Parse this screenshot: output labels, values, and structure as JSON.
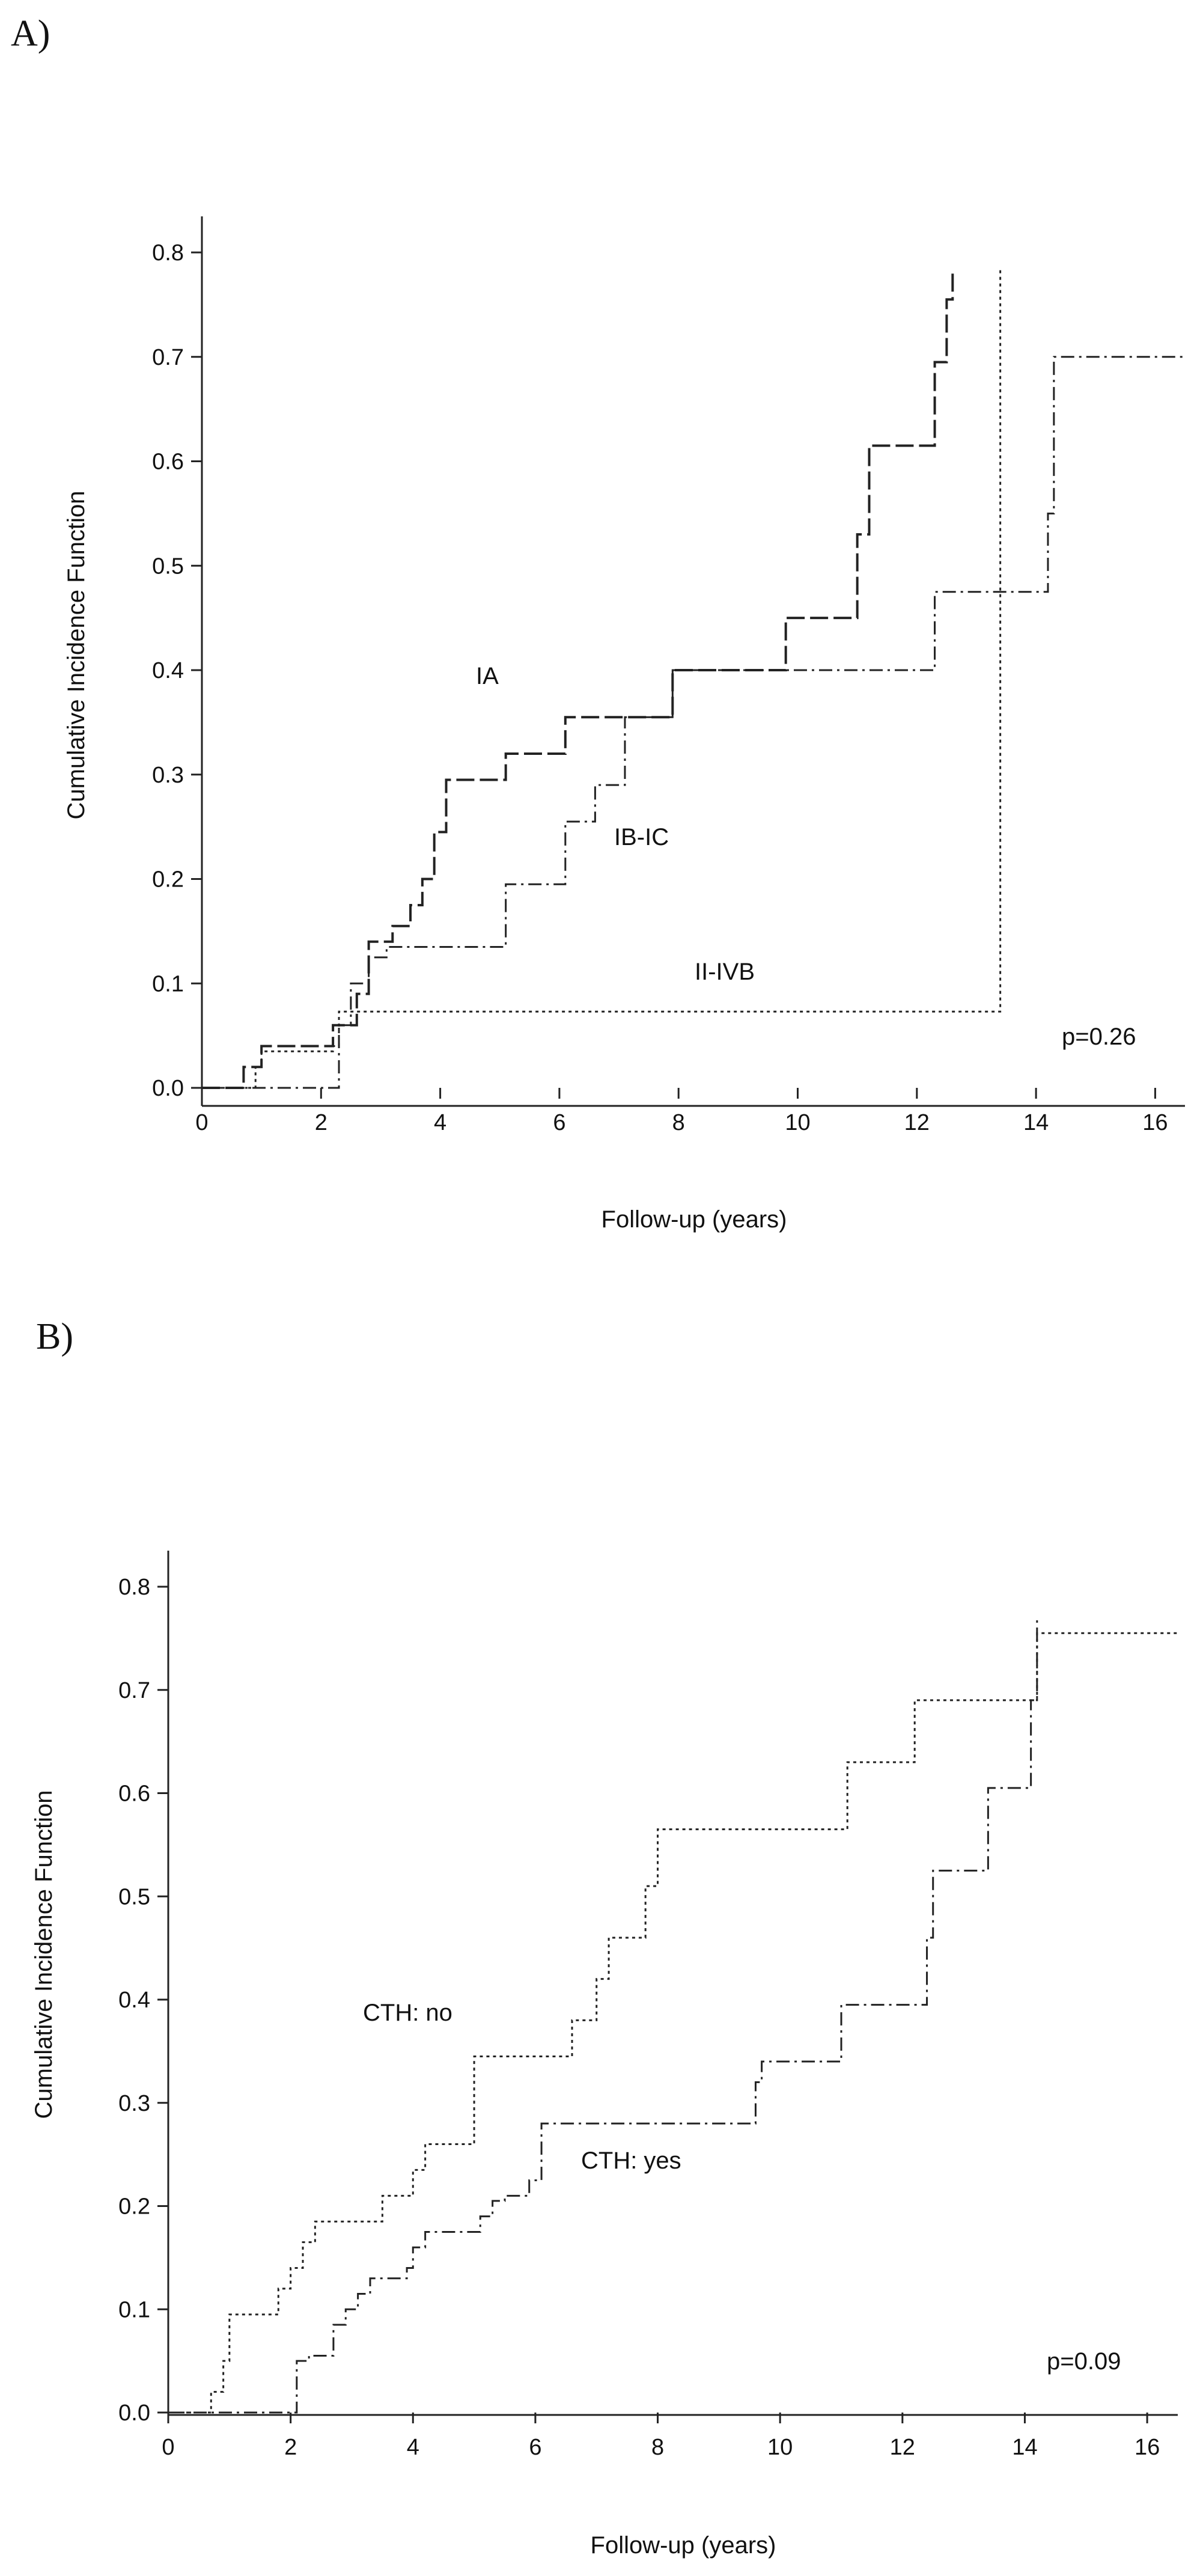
{
  "chart_data": [
    {
      "panel_label": "A)",
      "type": "line",
      "step": true,
      "xlabel": "Follow-up (years)",
      "ylabel": "Cumulative Incidence Function",
      "xlim": [
        0,
        16.5
      ],
      "ylim": [
        0,
        0.8
      ],
      "xticks": [
        0,
        2,
        4,
        6,
        8,
        10,
        12,
        14,
        16
      ],
      "yticks": [
        0.0,
        0.1,
        0.2,
        0.3,
        0.4,
        0.5,
        0.6,
        0.7,
        0.8
      ],
      "ytick_labels": [
        "0.0",
        "0.1",
        "0.2",
        "0.3",
        "0.4",
        "0.5",
        "0.6",
        "0.7",
        "0.8"
      ],
      "annotation": "p=0.26",
      "series": [
        {
          "name": "IA",
          "dash": "long",
          "x": [
            0,
            0.7,
            1.0,
            2.2,
            2.6,
            2.8,
            3.2,
            3.5,
            3.7,
            3.9,
            4.1,
            5.1,
            6.1,
            7.9,
            9.8,
            11.0,
            11.2,
            12.3,
            12.5,
            12.6
          ],
          "y": [
            0,
            0.02,
            0.04,
            0.06,
            0.09,
            0.14,
            0.155,
            0.175,
            0.2,
            0.245,
            0.295,
            0.32,
            0.355,
            0.4,
            0.45,
            0.53,
            0.615,
            0.695,
            0.755,
            0.78
          ]
        },
        {
          "name": "IB-IC",
          "dash": "dashdot",
          "x": [
            0,
            2.3,
            2.5,
            2.8,
            3.1,
            5.1,
            6.1,
            6.6,
            7.1,
            7.9,
            12.3,
            14.2,
            14.3
          ],
          "y": [
            0,
            0.06,
            0.1,
            0.125,
            0.135,
            0.195,
            0.255,
            0.29,
            0.355,
            0.4,
            0.475,
            0.55,
            0.7
          ],
          "x_end": 16.5
        },
        {
          "name": "II-IVB",
          "dash": "dot",
          "x": [
            0,
            0.9,
            1.0,
            2.2,
            2.3,
            13.4
          ],
          "y": [
            0,
            0.02,
            0.035,
            0.04,
            0.073,
            0.785
          ]
        }
      ]
    },
    {
      "panel_label": "B)",
      "type": "line",
      "step": true,
      "xlabel": "Follow-up (years)",
      "ylabel": "Cumulative Incidence Function",
      "xlim": [
        0,
        16.5
      ],
      "ylim": [
        0,
        0.8
      ],
      "xticks": [
        0,
        2,
        4,
        6,
        8,
        10,
        12,
        14,
        16
      ],
      "yticks": [
        0.0,
        0.1,
        0.2,
        0.3,
        0.4,
        0.5,
        0.6,
        0.7,
        0.8
      ],
      "ytick_labels": [
        "0.0",
        "0.1",
        "0.2",
        "0.3",
        "0.4",
        "0.5",
        "0.6",
        "0.7",
        "0.8"
      ],
      "annotation": "p=0.09",
      "series": [
        {
          "name": "CTH: no",
          "dash": "dot",
          "x": [
            0,
            0.7,
            0.9,
            1.0,
            1.8,
            2.0,
            2.2,
            2.4,
            3.5,
            4.0,
            4.2,
            5.0,
            6.6,
            7.0,
            7.2,
            7.8,
            8.0,
            11.1,
            12.2,
            14.2
          ],
          "y": [
            0,
            0.02,
            0.05,
            0.095,
            0.12,
            0.14,
            0.165,
            0.185,
            0.21,
            0.235,
            0.26,
            0.345,
            0.38,
            0.42,
            0.46,
            0.51,
            0.565,
            0.63,
            0.69,
            0.755
          ],
          "x_end": 16.5
        },
        {
          "name": "CTH: yes",
          "dash": "dashdot",
          "x": [
            0,
            2.1,
            2.3,
            2.7,
            2.9,
            3.1,
            3.3,
            3.9,
            4.0,
            4.2,
            5.1,
            5.3,
            5.5,
            5.9,
            6.1,
            9.6,
            9.7,
            11.0,
            12.4,
            12.5,
            13.4,
            14.1,
            14.2
          ],
          "y": [
            0,
            0.05,
            0.055,
            0.085,
            0.1,
            0.115,
            0.13,
            0.14,
            0.16,
            0.175,
            0.19,
            0.205,
            0.21,
            0.225,
            0.28,
            0.32,
            0.34,
            0.395,
            0.46,
            0.525,
            0.605,
            0.69,
            0.77
          ]
        }
      ]
    }
  ]
}
